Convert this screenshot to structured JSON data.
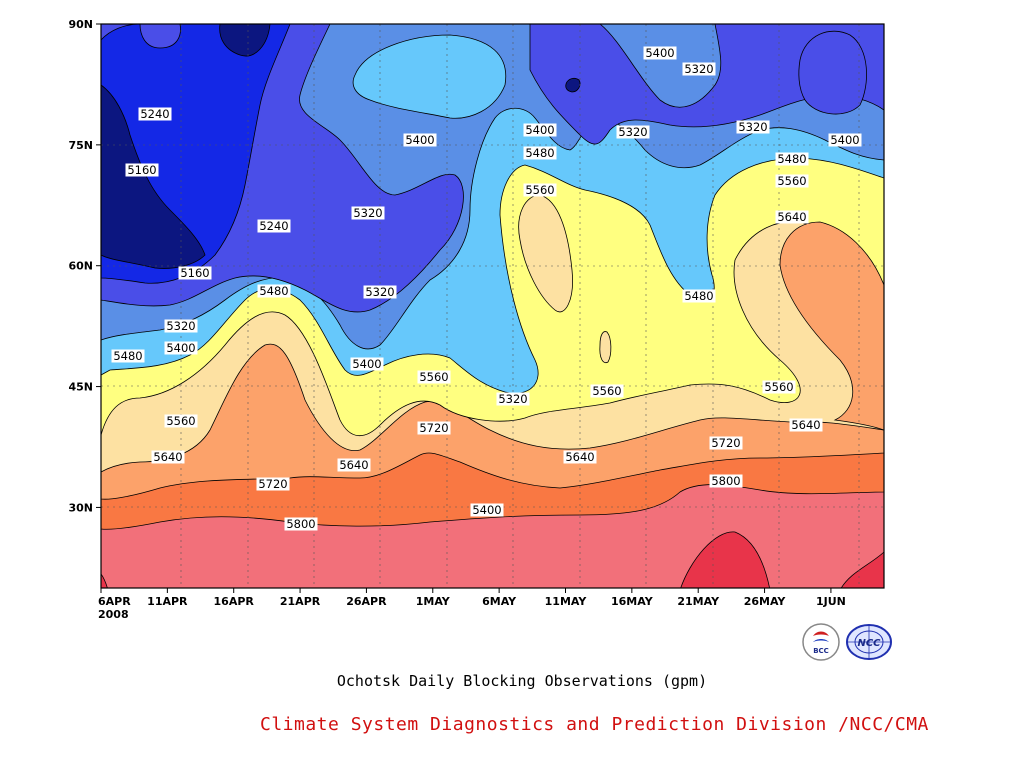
{
  "chart_data": {
    "type": "contour",
    "title": "Ochotsk Daily Blocking Observations (gpm)",
    "credit": "Climate System Diagnostics and Prediction Division /NCC/CMA",
    "year_label": "2008",
    "y_ticks": [
      "90N",
      "75N",
      "60N",
      "45N",
      "30N"
    ],
    "y_tick_values": [
      90,
      75,
      60,
      45,
      30
    ],
    "ylim": [
      20,
      90
    ],
    "x_ticks": [
      "6APR",
      "11APR",
      "16APR",
      "21APR",
      "26APR",
      "1MAY",
      "6MAY",
      "11MAY",
      "16MAY",
      "21MAY",
      "26MAY",
      "1JUN"
    ],
    "contour_levels": [
      5160,
      5240,
      5320,
      5400,
      5480,
      5560,
      5640,
      5720,
      5800
    ],
    "fill_colors": {
      "below_5160": "#0c1680",
      "5160_5240": "#1428e6",
      "5240_5320": "#4a4ee8",
      "5320_5400": "#5a8fe6",
      "5400_5480": "#66c8fb",
      "5480_5560": "#ffff80",
      "5560_5640": "#fde1a2",
      "5640_5720": "#fca26a",
      "5720_5800": "#f97843",
      "5800_5880": "#f2707a",
      "above_5880": "#e8344a"
    },
    "contour_labels": [
      {
        "text": "5240"
      },
      {
        "text": "5160"
      },
      {
        "text": "5240"
      },
      {
        "text": "5160"
      },
      {
        "text": "5320"
      },
      {
        "text": "5400"
      },
      {
        "text": "5480"
      },
      {
        "text": "5480"
      },
      {
        "text": "5400"
      },
      {
        "text": "5320"
      },
      {
        "text": "5320"
      },
      {
        "text": "5400"
      },
      {
        "text": "5560"
      },
      {
        "text": "5640"
      },
      {
        "text": "5720"
      },
      {
        "text": "5640"
      },
      {
        "text": "5560"
      },
      {
        "text": "5720"
      },
      {
        "text": "5800"
      },
      {
        "text": "5400"
      },
      {
        "text": "5480"
      },
      {
        "text": "5560"
      },
      {
        "text": "5400"
      },
      {
        "text": "5320"
      },
      {
        "text": "5320"
      },
      {
        "text": "5480"
      },
      {
        "text": "5560"
      },
      {
        "text": "5640"
      },
      {
        "text": "5720"
      },
      {
        "text": "5800"
      },
      {
        "text": "5400"
      },
      {
        "text": "5320"
      },
      {
        "text": "5400"
      },
      {
        "text": "5320"
      },
      {
        "text": "5480"
      },
      {
        "text": "5560"
      },
      {
        "text": "5640"
      },
      {
        "text": "5560"
      },
      {
        "text": "5640"
      },
      {
        "text": "5480"
      }
    ],
    "logos": [
      "bcc-logo",
      "ncc-logo"
    ],
    "logo_text": [
      "BCC",
      "NCC"
    ]
  }
}
